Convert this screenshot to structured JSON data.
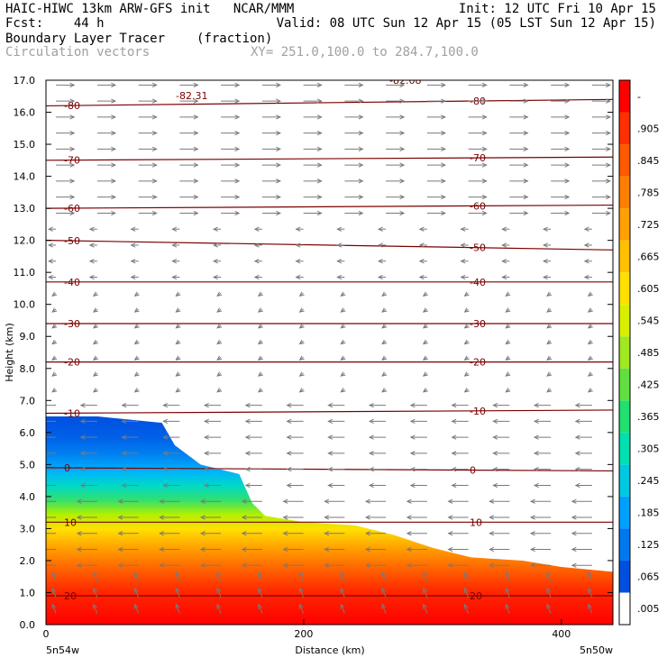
{
  "header": {
    "line1_left": "HAIC-HIWC 13km ARW-GFS init   NCAR/MMM",
    "line1_right": "Init: 12 UTC Fri 10 Apr 15",
    "line2_left": "Fcst:    44 h",
    "line2_right": "Valid: 08 UTC Sun 12 Apr 15 (05 LST Sun 12 Apr 15)",
    "line3_left": "Boundary Layer Tracer",
    "line3_units": "(fraction)",
    "line4_left": "Circulation vectors",
    "line4_xy": "XY= 251.0,100.0 to 284.7,100.0"
  },
  "chart_data": {
    "type": "heatmap",
    "xlabel": "Distance (km)",
    "ylabel": "Height (km)",
    "xlim": [
      0,
      440
    ],
    "ylim": [
      0,
      17
    ],
    "x_ticks": [
      0,
      200,
      400
    ],
    "y_ticks": [
      "0.0",
      "1.0",
      "2.0",
      "3.0",
      "4.0",
      "5.0",
      "6.0",
      "7.0",
      "8.0",
      "9.0",
      "10.0",
      "11.0",
      "12.0",
      "13.0",
      "14.0",
      "15.0",
      "16.0",
      "17.0"
    ],
    "x_endpoint_labels": [
      "5n54w",
      "5n50w"
    ],
    "colorbar": {
      "labels": [
        ".005",
        ".065",
        ".125",
        ".185",
        ".245",
        ".305",
        ".365",
        ".425",
        ".485",
        ".545",
        ".605",
        ".665",
        ".725",
        ".785",
        ".845",
        ".905",
        "-"
      ],
      "colors": [
        "#ffffff",
        "#0050e0",
        "#0078f0",
        "#00a0ff",
        "#00c8e0",
        "#00e0b0",
        "#20e070",
        "#60e040",
        "#a0e820",
        "#d8f000",
        "#ffe000",
        "#ffc000",
        "#ffa000",
        "#ff8000",
        "#ff5a00",
        "#ff3000",
        "#ff0000"
      ]
    },
    "tracer_top_km": [
      [
        0,
        6.5
      ],
      [
        40,
        6.5
      ],
      [
        90,
        6.3
      ],
      [
        100,
        5.6
      ],
      [
        120,
        5.0
      ],
      [
        150,
        4.7
      ],
      [
        160,
        3.8
      ],
      [
        170,
        3.4
      ],
      [
        200,
        3.2
      ],
      [
        240,
        3.1
      ],
      [
        270,
        2.8
      ],
      [
        300,
        2.4
      ],
      [
        330,
        2.1
      ],
      [
        370,
        2.0
      ],
      [
        400,
        1.8
      ],
      [
        440,
        1.65
      ]
    ],
    "temperature_contours": [
      {
        "label": "-80",
        "left_km": 16.2,
        "right_km": 16.4
      },
      {
        "label": "-70",
        "left_km": 14.5,
        "right_km": 14.6
      },
      {
        "label": "-60",
        "left_km": 13.0,
        "right_km": 13.1
      },
      {
        "label": "-50",
        "left_km": 12.0,
        "right_km": 11.7
      },
      {
        "label": "-40",
        "left_km": 10.7,
        "right_km": 10.7
      },
      {
        "label": "-30",
        "left_km": 9.4,
        "right_km": 9.4
      },
      {
        "label": "-20",
        "left_km": 8.2,
        "right_km": 8.2
      },
      {
        "label": "-10",
        "left_km": 6.6,
        "right_km": 6.7
      },
      {
        "label": "0",
        "left_km": 4.9,
        "right_km": 4.8
      },
      {
        "label": "10",
        "left_km": 3.2,
        "right_km": 3.2
      },
      {
        "label": "20",
        "left_km": 0.9,
        "right_km": 0.9
      }
    ],
    "annotations": [
      "-82.31",
      "-82.08"
    ]
  }
}
